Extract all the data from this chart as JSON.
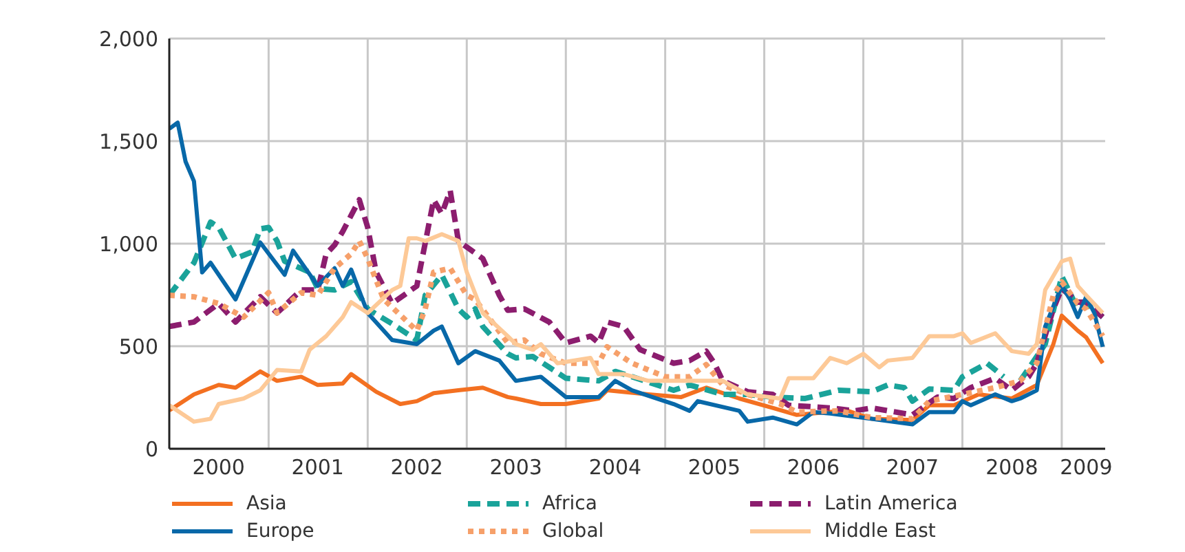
{
  "chart_data": {
    "type": "line",
    "xlim": [
      "2000-01",
      "2009-06-10"
    ],
    "xticks": [
      {
        "value": "2000-07",
        "label": "2000"
      },
      {
        "value": "2001-01",
        "label": null
      },
      {
        "value": "2001-07",
        "label": "2001"
      },
      {
        "value": "2002-01",
        "label": null
      },
      {
        "value": "2002-07",
        "label": "2002"
      },
      {
        "value": "2003-01",
        "label": null
      },
      {
        "value": "2003-07",
        "label": "2003"
      },
      {
        "value": "2004-01",
        "label": null
      },
      {
        "value": "2004-07",
        "label": "2004"
      },
      {
        "value": "2005-01",
        "label": null
      },
      {
        "value": "2005-07",
        "label": "2005"
      },
      {
        "value": "2006-01",
        "label": null
      },
      {
        "value": "2006-07",
        "label": "2006"
      },
      {
        "value": "2007-01",
        "label": null
      },
      {
        "value": "2007-07",
        "label": "2007"
      },
      {
        "value": "2008-01",
        "label": null
      },
      {
        "value": "2008-07",
        "label": "2008"
      },
      {
        "value": "2009-01",
        "label": null
      },
      {
        "value": "2009-04",
        "label": "2009"
      }
    ],
    "ylim": [
      0,
      2000
    ],
    "yticks": [
      0,
      500,
      {
        "value": 1000,
        "label": "1,000"
      },
      {
        "value": 1500,
        "label": "1,500"
      },
      {
        "value": 2000,
        "label": "2,000"
      }
    ],
    "grid": true,
    "legend": "bottom",
    "marker": "none",
    "series": [
      {
        "name": "Asia",
        "color": "#f37021",
        "line_style": "solid",
        "x": [
          "2000-01",
          "2000-04",
          "2000-07",
          "2000-09",
          "2000-12",
          "2001-02",
          "2001-05",
          "2001-07",
          "2001-10",
          "2001-11",
          "2002-02",
          "2002-05",
          "2002-07",
          "2002-09",
          "2002-12",
          "2003-03",
          "2003-06",
          "2003-07",
          "2003-10",
          "2004-01",
          "2004-05",
          "2004-06",
          "2004-11",
          "2005-03",
          "2005-06",
          "2005-10",
          "2006-02",
          "2006-05",
          "2006-11",
          "2007-02",
          "2007-07",
          "2007-09",
          "2007-12",
          "2008-03",
          "2008-07",
          "2008-10",
          "2008-12",
          "2009-01",
          "2009-03",
          "2009-04",
          "2009-06"
        ],
        "values": [
          187,
          265,
          311,
          298,
          377,
          331,
          351,
          311,
          318,
          364,
          278,
          218,
          232,
          271,
          285,
          298,
          252,
          245,
          218,
          218,
          245,
          285,
          265,
          252,
          298,
          245,
          199,
          165,
          187,
          146,
          140,
          212,
          212,
          265,
          245,
          311,
          510,
          649,
          576,
          543,
          417
        ]
      },
      {
        "name": "Africa",
        "color": "#1aa39a",
        "line_style": "dashed",
        "x": [
          "2000-01",
          "2000-04",
          "2000-06",
          "2000-07",
          "2000-09",
          "2000-11",
          "2000-12",
          "2001-01",
          "2001-02",
          "2001-03",
          "2001-06",
          "2001-07",
          "2001-09",
          "2001-11",
          "2002-01",
          "2002-04",
          "2002-07",
          "2002-08",
          "2002-10",
          "2002-12",
          "2003-01",
          "2003-02",
          "2003-03",
          "2003-06",
          "2003-07",
          "2003-09",
          "2003-11",
          "2004-01",
          "2004-05",
          "2004-07",
          "2004-09",
          "2005-02",
          "2005-04",
          "2005-08",
          "2005-11",
          "2006-02",
          "2006-06",
          "2006-10",
          "2007-02",
          "2007-04",
          "2007-06",
          "2007-07",
          "2007-09",
          "2007-12",
          "2008-01",
          "2008-04",
          "2008-06",
          "2008-07",
          "2008-08",
          "2008-11",
          "2009-01",
          "2009-03",
          "2009-04",
          "2009-06"
        ],
        "values": [
          748,
          907,
          1105,
          1079,
          927,
          960,
          1072,
          1079,
          1013,
          914,
          861,
          781,
          774,
          814,
          682,
          609,
          530,
          748,
          847,
          682,
          642,
          682,
          596,
          463,
          443,
          450,
          397,
          344,
          331,
          377,
          351,
          285,
          311,
          265,
          265,
          252,
          245,
          285,
          278,
          311,
          298,
          232,
          291,
          285,
          351,
          417,
          351,
          null,
          331,
          510,
          841,
          682,
          708,
          642
        ]
      },
      {
        "name": "Latin America",
        "color": "#8c1d6e",
        "line_style": "dashed",
        "x": [
          "2000-01",
          "2000-04",
          "2000-07",
          "2000-09",
          "2000-12",
          "2001-02",
          "2001-05",
          "2001-07",
          "2001-08",
          "2001-09",
          "2001-10",
          "2001-12",
          "2002-01",
          "2002-02",
          "2002-04",
          "2002-07",
          "2002-09",
          "2002-10",
          "2002-11",
          "2002-12",
          "2003-03",
          "2003-05",
          "2003-06",
          "2003-08",
          "2003-11",
          "2004-01",
          "2004-04",
          "2004-05",
          "2004-06",
          "2004-08",
          "2004-10",
          "2005-02",
          "2005-04",
          "2005-06",
          "2005-07",
          "2005-08",
          "2005-11",
          "2006-02",
          "2006-04",
          "2006-09",
          "2006-12",
          "2007-02",
          "2007-07",
          "2007-10",
          "2007-12",
          "2008-02",
          "2008-05",
          "2008-07",
          "2008-09",
          "2008-10",
          "2008-12",
          "2009-01",
          "2009-03",
          "2009-04",
          "2009-06"
        ],
        "values": [
          596,
          618,
          708,
          618,
          741,
          662,
          774,
          774,
          950,
          993,
          1059,
          1214,
          1079,
          861,
          708,
          794,
          1214,
          1146,
          1258,
          1013,
          927,
          748,
          675,
          682,
          618,
          516,
          549,
          516,
          618,
          596,
          483,
          417,
          430,
          476,
          417,
          331,
          278,
          265,
          212,
          199,
          185,
          199,
          165,
          252,
          245,
          298,
          344,
          285,
          351,
          417,
          682,
          781,
          715,
          715,
          642
        ]
      },
      {
        "name": "Europe",
        "color": "#0868a8",
        "line_style": "solid",
        "x": [
          "2000-01",
          "2000-02",
          "2000-03",
          "2000-04",
          "2000-05",
          "2000-06",
          "2000-09",
          "2000-12",
          "2001-03",
          "2001-04",
          "2001-07",
          "2001-09",
          "2001-10",
          "2001-11",
          "2002-01",
          "2002-04",
          "2002-07",
          "2002-09",
          "2002-10",
          "2002-12",
          "2003-02",
          "2003-05",
          "2003-07",
          "2003-10",
          "2004-01",
          "2004-05",
          "2004-07",
          "2004-09",
          "2005-02",
          "2005-04",
          "2005-05",
          "2005-10",
          "2005-11",
          "2006-02",
          "2006-05",
          "2006-07",
          "2006-09",
          "2007-02",
          "2007-07",
          "2007-09",
          "2007-12",
          "2008-01",
          "2008-02",
          "2008-05",
          "2008-07",
          "2008-08",
          "2008-10",
          "2008-11",
          "2009-01",
          "2009-02",
          "2009-03",
          "2009-04",
          "2009-05",
          "2009-06"
        ],
        "values": [
          1560,
          1590,
          1400,
          1304,
          860,
          907,
          728,
          1006,
          848,
          966,
          794,
          880,
          794,
          874,
          662,
          530,
          510,
          576,
          596,
          417,
          476,
          430,
          331,
          351,
          252,
          252,
          331,
          285,
          218,
          185,
          232,
          185,
          132,
          152,
          119,
          179,
          172,
          146,
          119,
          179,
          179,
          232,
          212,
          265,
          232,
          245,
          285,
          596,
          794,
          728,
          642,
          741,
          662,
          497
        ]
      },
      {
        "name": "Global",
        "color": "#f6a06a",
        "line_style": "dotted",
        "x": [
          "2000-01",
          "2000-04",
          "2000-07",
          "2000-10",
          "2001-01",
          "2001-02",
          "2001-05",
          "2001-07",
          "2001-09",
          "2001-11",
          "2001-12",
          "2002-01",
          "2002-03",
          "2002-07",
          "2002-08",
          "2002-09",
          "2002-11",
          "2003-01",
          "2003-02",
          "2003-06",
          "2003-08",
          "2003-10",
          "2004-01",
          "2004-05",
          "2004-06",
          "2004-09",
          "2005-01",
          "2005-04",
          "2005-06",
          "2005-08",
          "2005-11",
          "2006-03",
          "2006-05",
          "2006-10",
          "2007-02",
          "2007-07",
          "2007-09",
          "2008-01",
          "2008-05",
          "2008-08",
          "2008-10",
          "2008-12",
          "2009-01",
          "2009-03",
          "2009-04",
          "2009-06"
        ],
        "values": [
          748,
          741,
          708,
          642,
          761,
          662,
          761,
          748,
          880,
          950,
          1013,
          927,
          728,
          576,
          682,
          861,
          880,
          748,
          728,
          516,
          530,
          463,
          417,
          417,
          497,
          417,
          351,
          351,
          410,
          311,
          265,
          218,
          179,
          185,
          152,
          146,
          232,
          265,
          298,
          331,
          417,
          748,
          814,
          708,
          682,
          549
        ]
      },
      {
        "name": "Middle East",
        "color": "#fdc997",
        "line_style": "solid",
        "x": [
          "2000-01",
          "2000-04",
          "2000-06",
          "2000-07",
          "2000-10",
          "2000-12",
          "2001-02",
          "2001-05",
          "2001-06",
          "2001-08",
          "2001-10",
          "2001-11",
          "2002-01",
          "2002-04",
          "2002-05",
          "2002-06",
          "2002-07",
          "2002-08",
          "2002-10",
          "2002-12",
          "2003-01",
          "2003-03",
          "2003-06",
          "2003-07",
          "2003-09",
          "2003-10",
          "2003-12",
          "2004-04",
          "2004-05",
          "2004-08",
          "2004-11",
          "2005-02",
          "2005-04",
          "2005-08",
          "2005-11",
          "2006-03",
          "2006-04",
          "2006-07",
          "2006-09",
          "2006-11",
          "2007-01",
          "2007-03",
          "2007-04",
          "2007-07",
          "2007-09",
          "2007-12",
          "2008-01",
          "2008-02",
          "2008-05",
          "2008-07",
          "2008-09",
          "2008-10",
          "2008-11",
          "2009-01",
          "2009-02",
          "2009-03",
          "2009-04",
          "2009-06"
        ],
        "values": [
          212,
          132,
          146,
          218,
          245,
          285,
          384,
          377,
          483,
          549,
          642,
          715,
          662,
          774,
          794,
          1026,
          1026,
          1013,
          1046,
          1013,
          861,
          662,
          549,
          510,
          483,
          510,
          417,
          443,
          364,
          364,
          331,
          331,
          331,
          331,
          265,
          245,
          344,
          344,
          443,
          417,
          463,
          397,
          430,
          443,
          549,
          549,
          563,
          516,
          563,
          476,
          463,
          510,
          774,
          914,
          927,
          794,
          748,
          662
        ]
      }
    ]
  }
}
